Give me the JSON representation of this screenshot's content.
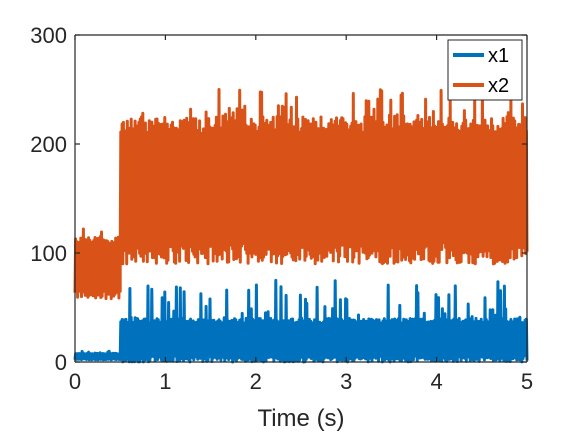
{
  "chart_data": {
    "type": "line",
    "title": "",
    "xlabel": "Time (s)",
    "ylabel": "",
    "xlim": [
      0,
      5
    ],
    "ylim": [
      0,
      300
    ],
    "xticks": [
      0,
      1,
      2,
      3,
      4,
      5
    ],
    "yticks": [
      0,
      100,
      200,
      300
    ],
    "xtick_labels": [
      "0",
      "1",
      "2",
      "3",
      "4",
      "5"
    ],
    "ytick_labels": [
      "0",
      "100",
      "200",
      "300"
    ],
    "grid": false,
    "legend_position": "top-right",
    "series": [
      {
        "name": "x1",
        "color": "#0072BD",
        "regimes": [
          {
            "t_start": 0.0,
            "t_end": 0.5,
            "low": 2,
            "high": 8,
            "peak": 10
          },
          {
            "t_start": 0.5,
            "t_end": 5.0,
            "low": 0,
            "high": 40,
            "peak": 75
          }
        ]
      },
      {
        "name": "x2",
        "color": "#D95319",
        "regimes": [
          {
            "t_start": 0.0,
            "t_end": 0.5,
            "low": 58,
            "high": 115,
            "peak": 130
          },
          {
            "t_start": 0.5,
            "t_end": 5.0,
            "low": 90,
            "high": 225,
            "peak": 252
          }
        ]
      }
    ]
  }
}
